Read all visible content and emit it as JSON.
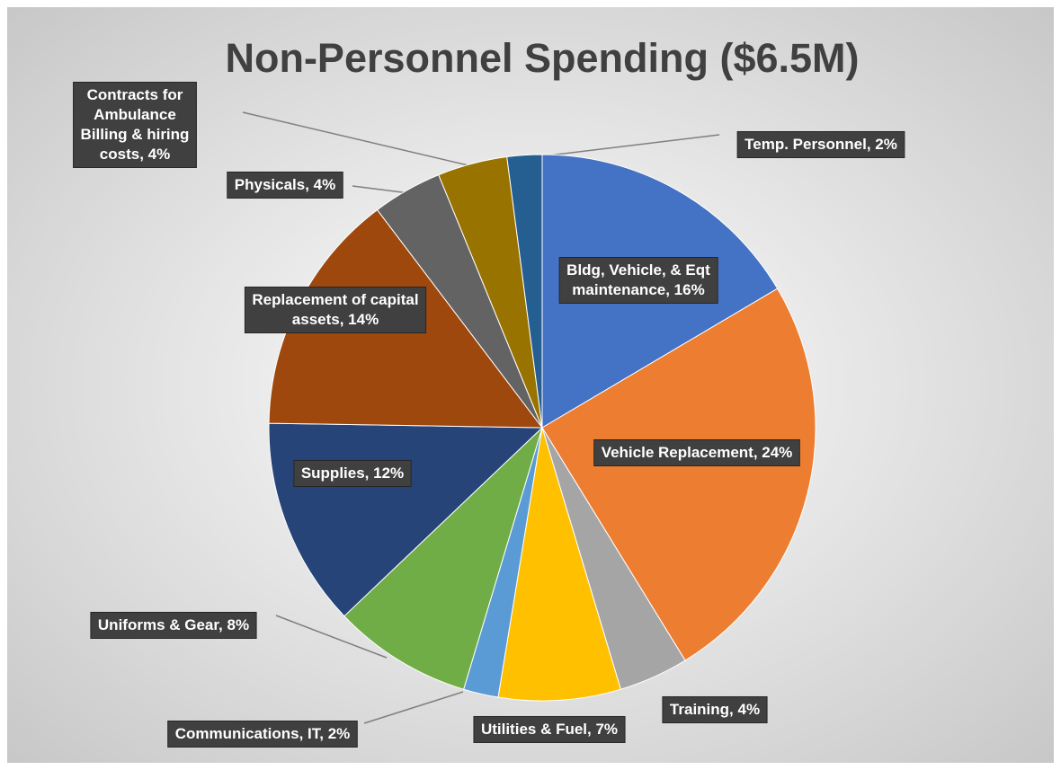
{
  "chart_data": {
    "type": "pie",
    "title": "Non-Personnel Spending ($6.5M)",
    "values": [
      16,
      24,
      4,
      7,
      2,
      8,
      12,
      14,
      4,
      4,
      2
    ],
    "value_labels": [
      "Bldg, Vehicle, & Eqt maintenance, 16%",
      "Vehicle Replacement, 24%",
      "Training, 4%",
      "Utilities & Fuel, 7%",
      "Communications, IT, 2%",
      "Uniforms & Gear, 8%",
      "Supplies, 12%",
      "Replacement of capital assets, 14%",
      "Physicals, 4%",
      "Contracts for Ambulance Billing & hiring costs, 4%",
      "Temp. Personnel, 2%"
    ],
    "colors": [
      "#4472c4",
      "#ed7d31",
      "#a5a5a5",
      "#ffc000",
      "#5b9bd5",
      "#70ad47",
      "#264478",
      "#9e480e",
      "#636363",
      "#997300",
      "#255e91"
    ]
  }
}
